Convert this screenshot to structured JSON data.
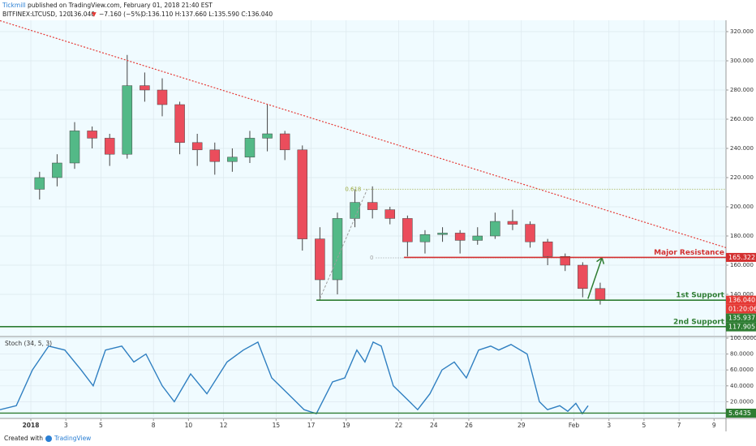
{
  "header": {
    "publisher": "Tickmill",
    "published": "published on TradingView.com, February 01, 2018 21:40 EST",
    "symbol": "BITFINEX:LTCUSD, 120",
    "last": "136.040",
    "arrow": "▼",
    "change": "−7.160 (−5%)",
    "ohlc": "O:136.110 H:137.660 L:135.590 C:136.040"
  },
  "footer": {
    "prefix": "Created with",
    "brand": "TradingView"
  },
  "chart_data": [
    {
      "type": "candlestick",
      "up_color": "#53b987",
      "down_color": "#eb4d5c",
      "grid": true,
      "x": [
        0.5,
        1.5,
        2.5,
        3.5,
        4.5,
        5.5,
        6.5,
        7.5,
        8.5,
        9.5,
        10.5,
        11.5,
        12.5,
        13.5,
        14.5,
        15.5,
        16.5,
        17.5,
        18.5,
        19.5,
        20.5,
        21.5,
        22.5,
        23.5,
        24.5,
        25.5,
        26.5,
        27.5,
        28.5,
        29.5,
        30.5,
        31.5,
        32.5
      ],
      "open": [
        212,
        220,
        230,
        252,
        247,
        236,
        283,
        280,
        270,
        244,
        239,
        231,
        234,
        247,
        250,
        239,
        178,
        150,
        192,
        203,
        198,
        192,
        176,
        181,
        182,
        177,
        180,
        190,
        188,
        176,
        166,
        160,
        144
      ],
      "high": [
        224,
        236,
        258,
        255,
        250,
        304,
        292,
        288,
        272,
        250,
        244,
        240,
        252,
        270,
        252,
        242,
        186,
        196,
        212,
        214,
        200,
        194,
        184,
        186,
        184,
        186,
        196,
        198,
        190,
        178,
        168,
        162,
        148
      ],
      "low": [
        205,
        214,
        226,
        240,
        228,
        233,
        272,
        262,
        236,
        228,
        222,
        224,
        230,
        238,
        232,
        170,
        136,
        140,
        186,
        192,
        188,
        166,
        168,
        176,
        168,
        174,
        178,
        184,
        172,
        160,
        156,
        138,
        133
      ],
      "close": [
        220,
        230,
        252,
        247,
        236,
        283,
        280,
        270,
        244,
        239,
        231,
        234,
        247,
        250,
        239,
        178,
        150,
        192,
        203,
        198,
        192,
        176,
        181,
        182,
        177,
        180,
        190,
        188,
        176,
        166,
        160,
        144,
        136.04
      ],
      "xlim": [
        -1.76,
        39.68
      ],
      "ylim": [
        111.67,
        327.78
      ],
      "yticks": [
        {
          "value": 140,
          "label": "140.000"
        },
        {
          "value": 160,
          "label": "160.000"
        },
        {
          "value": 180,
          "label": "180.000"
        },
        {
          "value": 200,
          "label": "200.000"
        },
        {
          "value": 220,
          "label": "220.000"
        },
        {
          "value": 240,
          "label": "240.000"
        },
        {
          "value": 260,
          "label": "260.000"
        },
        {
          "value": 280,
          "label": "280.000"
        },
        {
          "value": 300,
          "label": "300.000"
        },
        {
          "value": 320,
          "label": "320.000"
        }
      ],
      "trendline": {
        "color": "#e53935",
        "points": [
          [
            -1.76,
            327.5
          ],
          [
            39.68,
            172
          ]
        ]
      },
      "fib_diagonal": {
        "color": "#9e9e9e",
        "points": [
          [
            16.5,
            137
          ],
          [
            19.2,
            212
          ]
        ]
      },
      "arrow": {
        "color": "#2e7d32",
        "points": [
          [
            31.8,
            137
          ],
          [
            32.6,
            165
          ]
        ]
      },
      "fib_levels": [
        {
          "label": "0.618",
          "value": 212,
          "start": 19,
          "color": "#9aa83a"
        },
        {
          "label": "0",
          "value": 165,
          "start": 19.7,
          "color": "#9e9e9e"
        }
      ],
      "hlines": [
        {
          "label": "Major Resistance",
          "value": 165.322,
          "start": 21.3,
          "color": "#d32f2f"
        },
        {
          "label": "1st Support",
          "value": 136,
          "start": 16.3,
          "color": "#2e7d32"
        },
        {
          "label": "2nd Support",
          "value": 117.905,
          "start": -1.76,
          "color": "#2e7d32"
        }
      ],
      "price_tags": [
        {
          "label": "165.322",
          "value": 165.322,
          "color": "#d32f2f"
        },
        {
          "label": "136.040",
          "value": 136.04,
          "color": "#e53935"
        },
        {
          "label": "01:20:06",
          "color": "#e53935"
        },
        {
          "label": "135.937",
          "value": 135.937,
          "color": "#2e7d32"
        },
        {
          "label": "117.905",
          "value": 117.905,
          "color": "#2e7d32"
        }
      ]
    },
    {
      "type": "line",
      "title": "Stoch (34, 5, 3)",
      "color": "#2f7fc1",
      "grid": true,
      "x": [
        -1.76,
        -0.83,
        0.09,
        1.02,
        1.94,
        2.87,
        3.56,
        4.26,
        5.19,
        5.88,
        6.57,
        7.5,
        8.19,
        9.12,
        10.05,
        11.2,
        12.13,
        12.96,
        13.75,
        14.68,
        15.6,
        16.3,
        17.22,
        17.92,
        18.61,
        19.07,
        19.54,
        20,
        20.69,
        21.39,
        22.08,
        22.78,
        23.47,
        24.17,
        24.86,
        25.56,
        26.25,
        26.71,
        27.41,
        28.33,
        29.03,
        29.49,
        30.19,
        30.65,
        31.11,
        31.48,
        31.81
      ],
      "values": [
        10,
        15,
        60,
        90,
        85,
        60,
        40,
        85,
        90,
        70,
        80,
        40,
        20,
        55,
        30,
        70,
        85,
        95,
        50,
        30,
        10,
        5,
        45,
        50,
        85,
        70,
        95,
        90,
        40,
        25,
        10,
        30,
        60,
        70,
        50,
        85,
        90,
        85,
        92,
        80,
        20,
        10,
        15,
        8,
        18,
        5,
        15
      ],
      "xlim": [
        -1.76,
        39.68
      ],
      "ylim": [
        -1,
        101
      ],
      "yticks": [
        {
          "value": 20,
          "label": "20.0000"
        },
        {
          "value": 40,
          "label": "40.0000"
        },
        {
          "value": 60,
          "label": "60.0000"
        },
        {
          "value": 80,
          "label": "80.0000"
        },
        {
          "value": 100,
          "label": "100.0000"
        }
      ],
      "level": {
        "label": "5.6435",
        "value": 5.6435,
        "color": "#2e7d32"
      },
      "xticks": [
        {
          "value": 0,
          "label": "2018"
        },
        {
          "value": 2,
          "label": "3"
        },
        {
          "value": 4,
          "label": "5"
        },
        {
          "value": 7,
          "label": "8"
        },
        {
          "value": 9,
          "label": "10"
        },
        {
          "value": 11,
          "label": "12"
        },
        {
          "value": 14,
          "label": "15"
        },
        {
          "value": 16,
          "label": "17"
        },
        {
          "value": 18,
          "label": "19"
        },
        {
          "value": 21,
          "label": "22"
        },
        {
          "value": 23,
          "label": "24"
        },
        {
          "value": 25,
          "label": "26"
        },
        {
          "value": 28,
          "label": "29"
        },
        {
          "value": 31,
          "label": "Feb"
        },
        {
          "value": 33,
          "label": "3"
        },
        {
          "value": 35,
          "label": "5"
        },
        {
          "value": 37,
          "label": "7"
        },
        {
          "value": 39,
          "label": "9"
        }
      ]
    }
  ]
}
